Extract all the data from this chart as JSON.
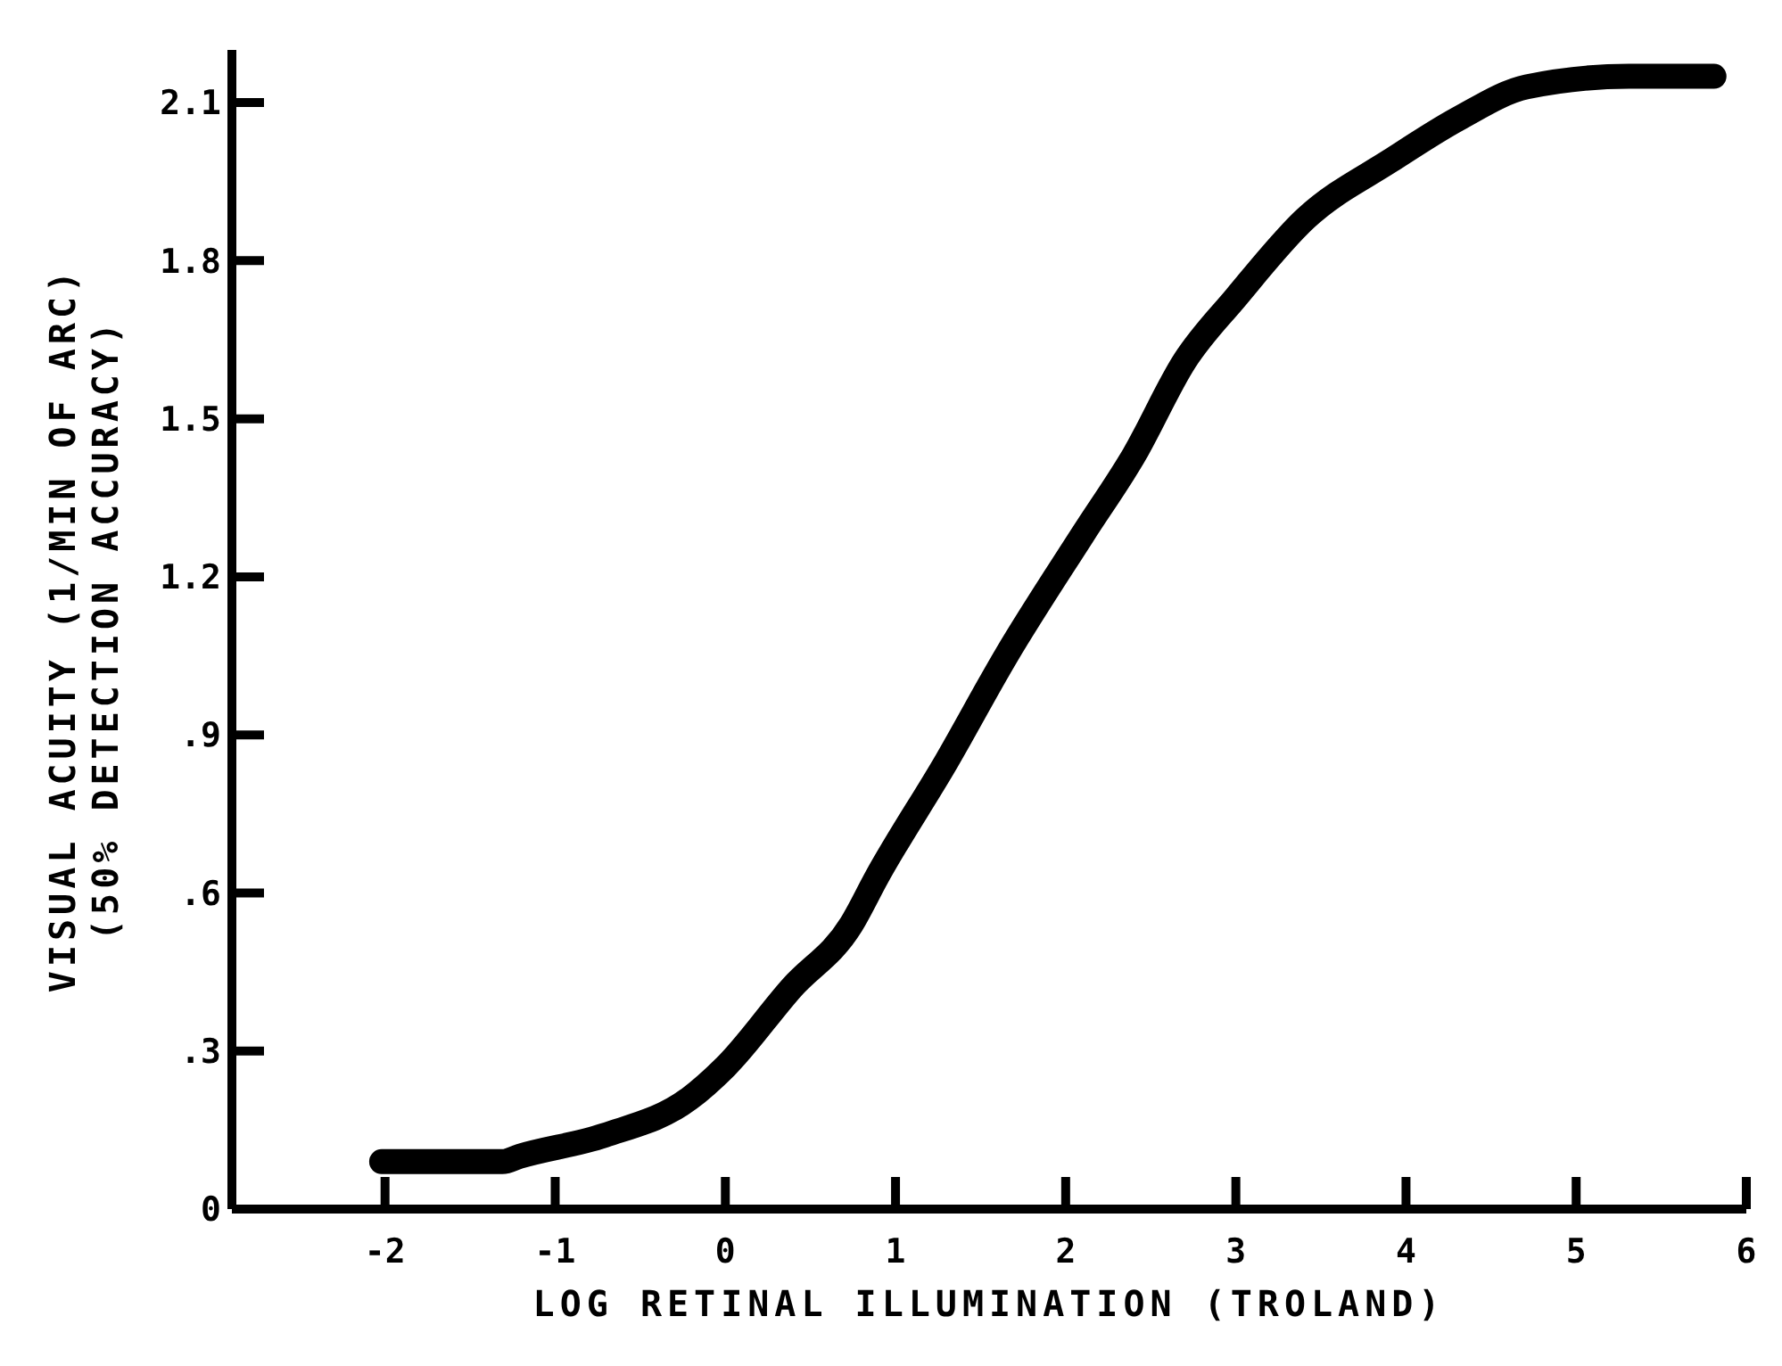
{
  "chart_data": {
    "type": "line",
    "xlabel": "LOG RETINAL ILLUMINATION (TROLAND)",
    "ylabel": "VISUAL ACUITY (1/MIN OF ARC)\n(50% DETECTION ACCURACY)",
    "xlim": [
      -2.9,
      6
    ],
    "ylim": [
      0,
      2.2
    ],
    "xticks": [
      -2,
      -1,
      0,
      1,
      2,
      3,
      4,
      5,
      6
    ],
    "yticks": [
      0,
      {
        "value": 0.3,
        "label": ".3"
      },
      {
        "value": 0.6,
        "label": ".6"
      },
      {
        "value": 0.9,
        "label": ".9"
      },
      1.2,
      1.5,
      1.8,
      2.1
    ],
    "grid": false,
    "line_style": "solid",
    "series": [
      {
        "color": "#000000",
        "x": [
          -2.02,
          -1.31,
          -1.21,
          -0.71,
          -0.21,
          0,
          0.39,
          0.74,
          0.89,
          1.3,
          1.65,
          2.1,
          2.4,
          2.7,
          3.0,
          3.41,
          3.91,
          4.31,
          4.71,
          5.31,
          5.81
        ],
        "values": [
          0.09,
          0.09,
          0.1,
          0.14,
          0.21,
          0.27,
          0.42,
          0.54,
          0.63,
          0.85,
          1.05,
          1.28,
          1.43,
          1.61,
          1.73,
          1.88,
          1.99,
          2.07,
          2.13,
          2.15,
          2.15
        ]
      }
    ]
  }
}
